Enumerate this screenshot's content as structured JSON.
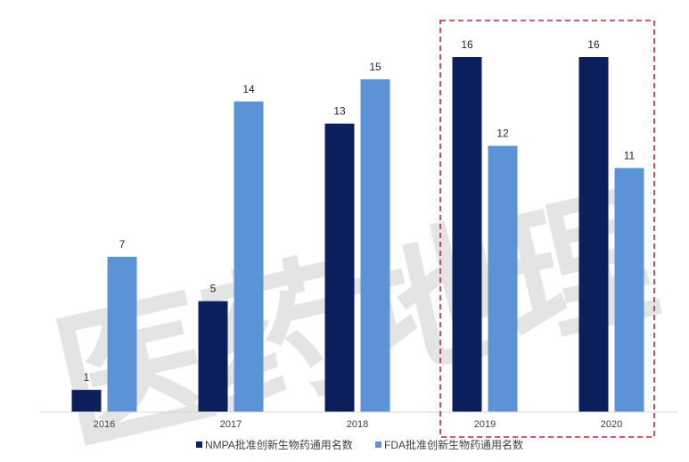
{
  "watermark": {
    "text": "医药地理"
  },
  "colors": {
    "nmpa": "#0a1f5c",
    "fda": "#5b93d6",
    "highlight_box": "#c0282d",
    "axis": "#d9d9d9"
  },
  "chart_data": {
    "type": "bar",
    "title": "",
    "xlabel": "",
    "ylabel": "",
    "categories": [
      "2016",
      "2017",
      "2018",
      "2019",
      "2020"
    ],
    "series": [
      {
        "name": "NMPA批准创新生物药通用名数",
        "values": [
          1,
          5,
          13,
          16,
          16
        ],
        "color": "#0a1f5c"
      },
      {
        "name": "FDA批准创新生物药通用名数",
        "values": [
          7,
          14,
          15,
          12,
          11
        ],
        "color": "#5b93d6"
      }
    ],
    "ylim": [
      0,
      16
    ],
    "data_labels": true,
    "grid": false,
    "legend": "bottom",
    "highlight_categories": [
      "2019",
      "2020"
    ]
  }
}
